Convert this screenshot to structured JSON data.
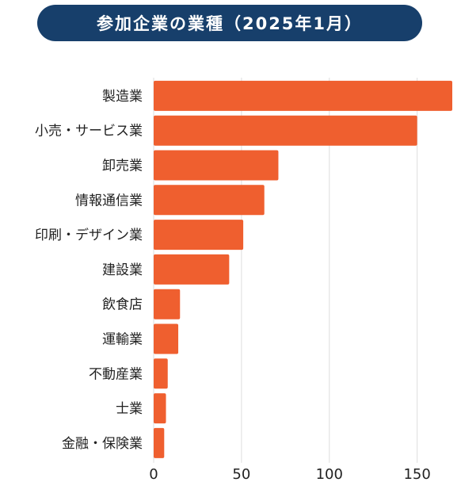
{
  "chart_data": {
    "type": "bar",
    "orientation": "horizontal",
    "title": "参加企業の業種（2025年1月）",
    "categories": [
      "製造業",
      "小売・サービス業",
      "卸売業",
      "情報通信業",
      "印刷・デザイン業",
      "建設業",
      "飲食店",
      "運輸業",
      "不動産業",
      "士業",
      "金融・保険業"
    ],
    "values": [
      170,
      150,
      71,
      63,
      51,
      43,
      15,
      14,
      8,
      7,
      6
    ],
    "xlim": [
      0,
      170
    ],
    "xticks": [
      "0",
      "50",
      "100",
      "150"
    ],
    "xtick_values": [
      0,
      50,
      100,
      150
    ],
    "grid": "vertical",
    "bar_color": "#ef5f2f",
    "title_bg": "#173f6b",
    "grid_color": "#dddddd"
  }
}
